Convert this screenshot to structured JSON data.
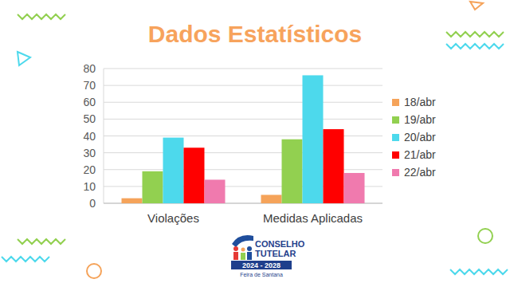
{
  "chart_data": {
    "type": "bar",
    "title": "Dados Estatísticos",
    "categories": [
      "Violações",
      "Medidas Aplicadas"
    ],
    "series": [
      {
        "name": "18/abr",
        "color": "#f5a35a",
        "values": [
          3,
          5
        ]
      },
      {
        "name": "19/abr",
        "color": "#92d050",
        "values": [
          19,
          38
        ]
      },
      {
        "name": "20/abr",
        "color": "#4dd9ec",
        "values": [
          39,
          76
        ]
      },
      {
        "name": "21/abr",
        "color": "#ff0000",
        "values": [
          33,
          44
        ]
      },
      {
        "name": "22/abr",
        "color": "#f07aae",
        "values": [
          14,
          18
        ]
      }
    ],
    "ylim": [
      0,
      80
    ],
    "yticks": [
      0,
      10,
      20,
      30,
      40,
      50,
      60,
      70,
      80
    ],
    "grid": true,
    "legend": "right"
  },
  "logo": {
    "line1": "CONSELHO",
    "line2": "TUTELAR",
    "years": "2024 - 2028",
    "city": "Feira de Santana"
  }
}
